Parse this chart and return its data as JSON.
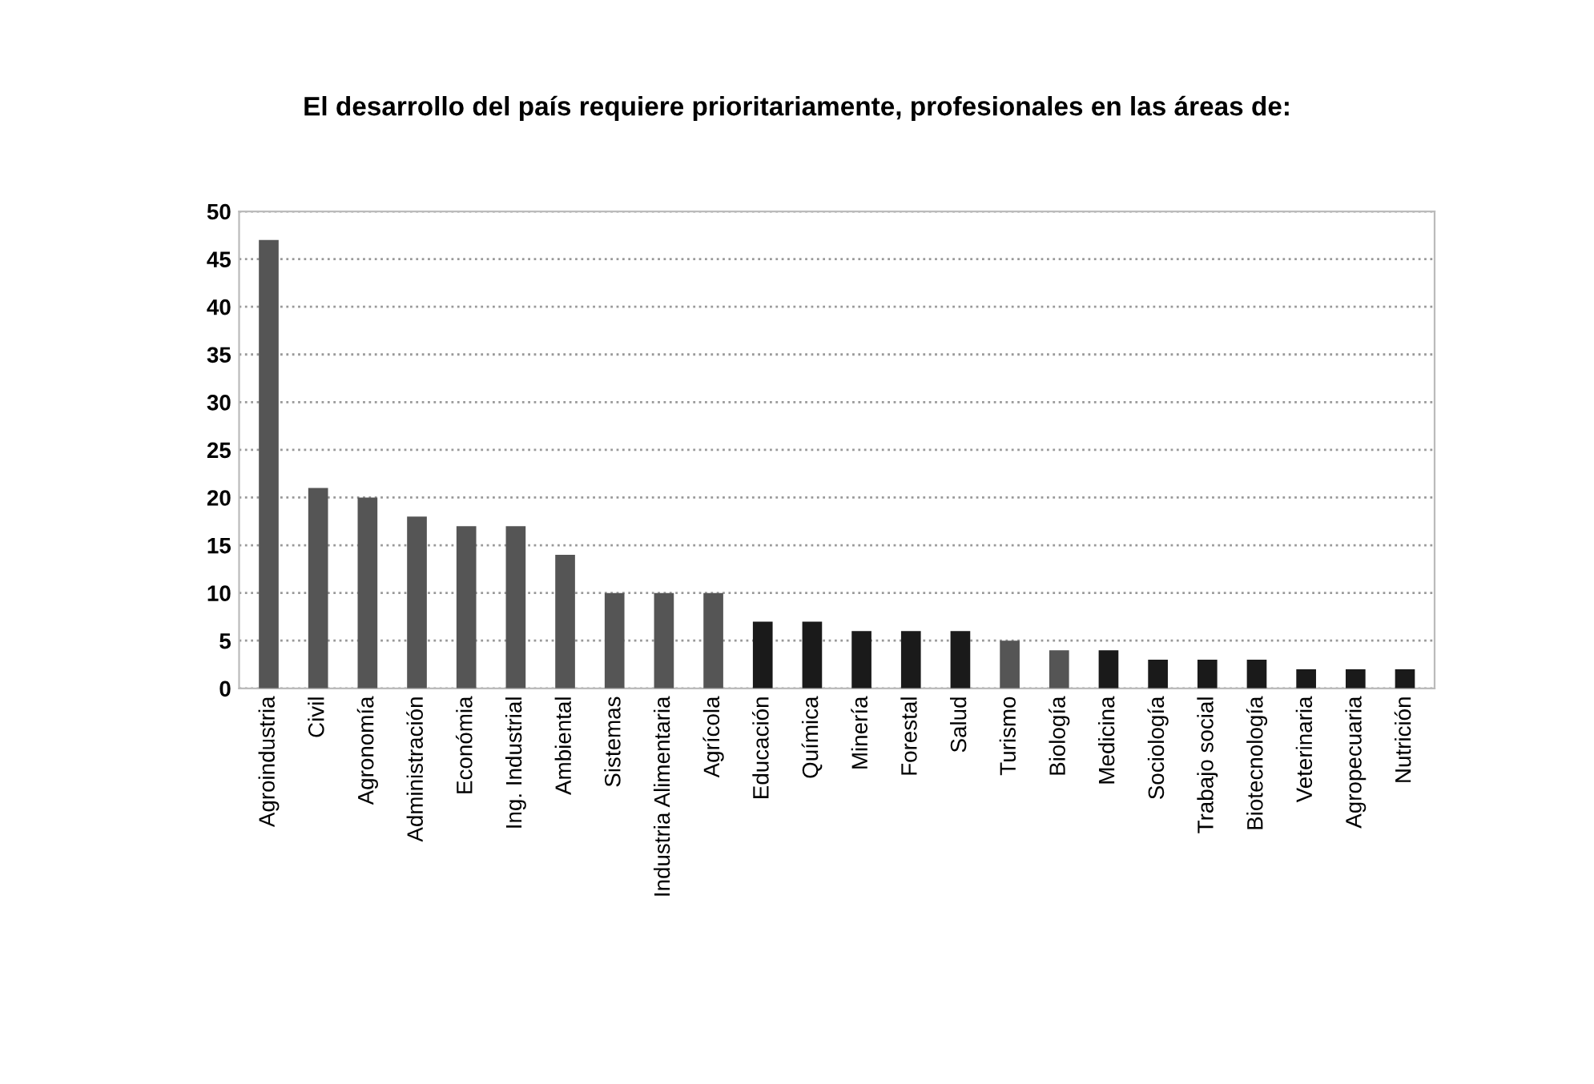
{
  "chart_data": {
    "type": "bar",
    "title": "El desarrollo del país requiere prioritariamente, profesionales en las áreas de:",
    "categories": [
      "Agroindustria",
      "Civil",
      "Agronomía",
      "Administración",
      "Económia",
      "Ing. Industrial",
      "Ambiental",
      "Sistemas",
      "Industria Alimentaria",
      "Agrícola",
      "Educación",
      "Química",
      "Minería",
      "Forestal",
      "Salud",
      "Turismo",
      "Biología",
      "Medicina",
      "Sociología",
      "Trabajo social",
      "Biotecnología",
      "Veterinaria",
      "Agropecuaria",
      "Nutrición"
    ],
    "values": [
      47,
      21,
      20,
      18,
      17,
      17,
      14,
      10,
      10,
      10,
      7,
      7,
      6,
      6,
      6,
      5,
      4,
      4,
      3,
      3,
      3,
      2,
      2,
      2
    ],
    "colors": [
      "#555555",
      "#555555",
      "#555555",
      "#555555",
      "#555555",
      "#555555",
      "#555555",
      "#555555",
      "#555555",
      "#555555",
      "#1a1a1a",
      "#1a1a1a",
      "#1a1a1a",
      "#1a1a1a",
      "#1a1a1a",
      "#555555",
      "#555555",
      "#1a1a1a",
      "#1a1a1a",
      "#1a1a1a",
      "#1a1a1a",
      "#1a1a1a",
      "#1a1a1a",
      "#1a1a1a"
    ],
    "ylim": [
      0,
      50
    ],
    "yticks": [
      0,
      5,
      10,
      15,
      20,
      25,
      30,
      35,
      40,
      45,
      50
    ],
    "grid": "y"
  }
}
